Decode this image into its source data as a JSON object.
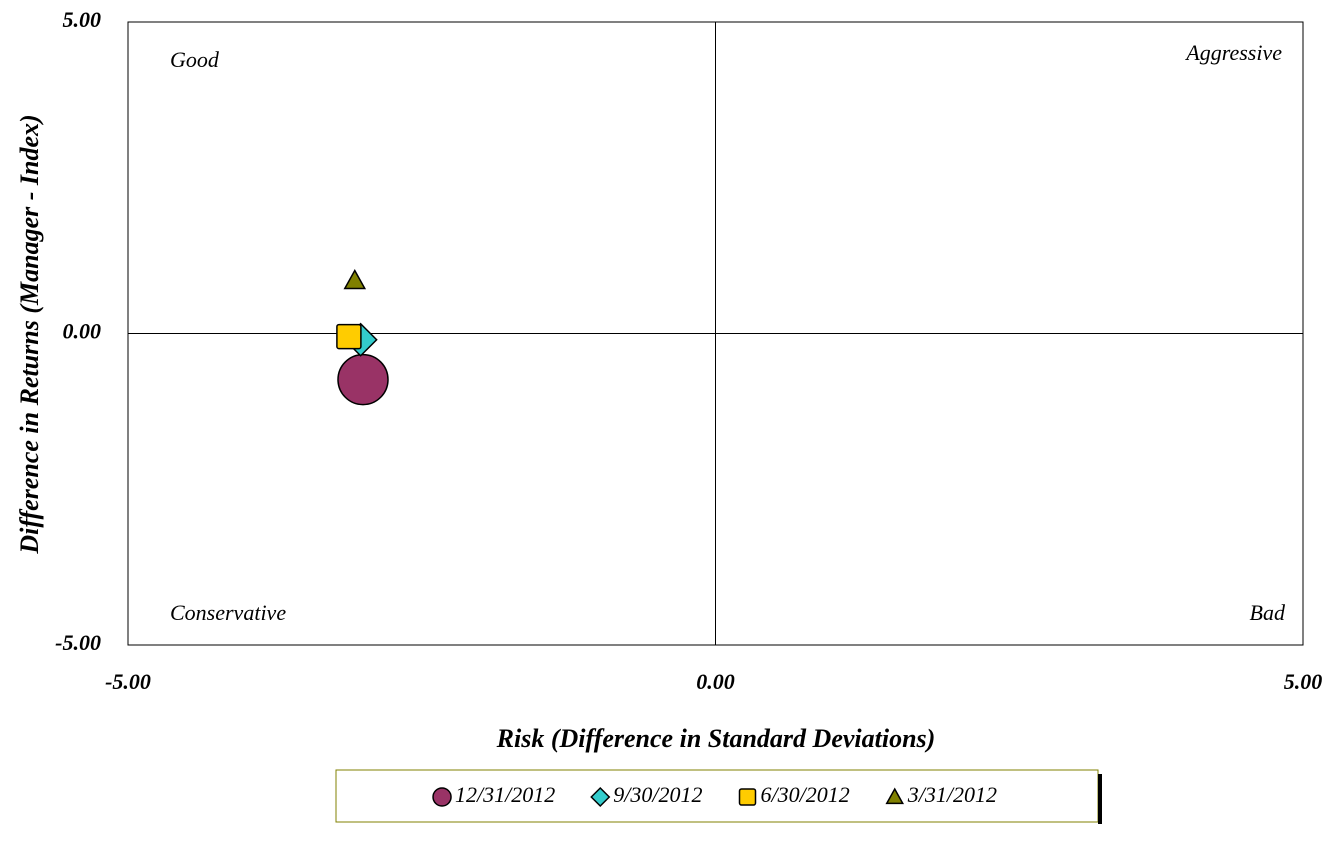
{
  "chart_data": {
    "type": "scatter",
    "x_label": "Risk (Difference in Standard Deviations)",
    "y_label": "Difference in Returns (Manager - Index)",
    "annotations": [
      "Good",
      "Aggressive",
      "Conservative",
      "Bad"
    ],
    "xlim": [
      -5,
      5
    ],
    "ylim": [
      -5,
      5
    ],
    "xticks": [
      {
        "value": -5,
        "label": "-5.00"
      },
      {
        "value": 0,
        "label": "0.00"
      },
      {
        "value": 5,
        "label": "5.00"
      }
    ],
    "yticks": [
      {
        "value": -5,
        "label": "-5.00"
      },
      {
        "value": 0,
        "label": "0.00"
      },
      {
        "value": 5,
        "label": "5.00"
      }
    ],
    "series": [
      {
        "name": "12/31/2012",
        "color": "#993366",
        "marker": "circle",
        "x": [
          -3.0
        ],
        "values": [
          -0.74
        ]
      },
      {
        "name": "9/30/2012",
        "color": "#33CCCC",
        "marker": "diamond",
        "x": [
          -3.02
        ],
        "values": [
          -0.1
        ]
      },
      {
        "name": "6/30/2012",
        "color": "#FFCC00",
        "marker": "square",
        "x": [
          -3.12
        ],
        "values": [
          -0.05
        ]
      },
      {
        "name": "3/31/2012",
        "color": "#808000",
        "marker": "triangle",
        "x": [
          -3.07
        ],
        "values": [
          0.85
        ]
      }
    ]
  }
}
